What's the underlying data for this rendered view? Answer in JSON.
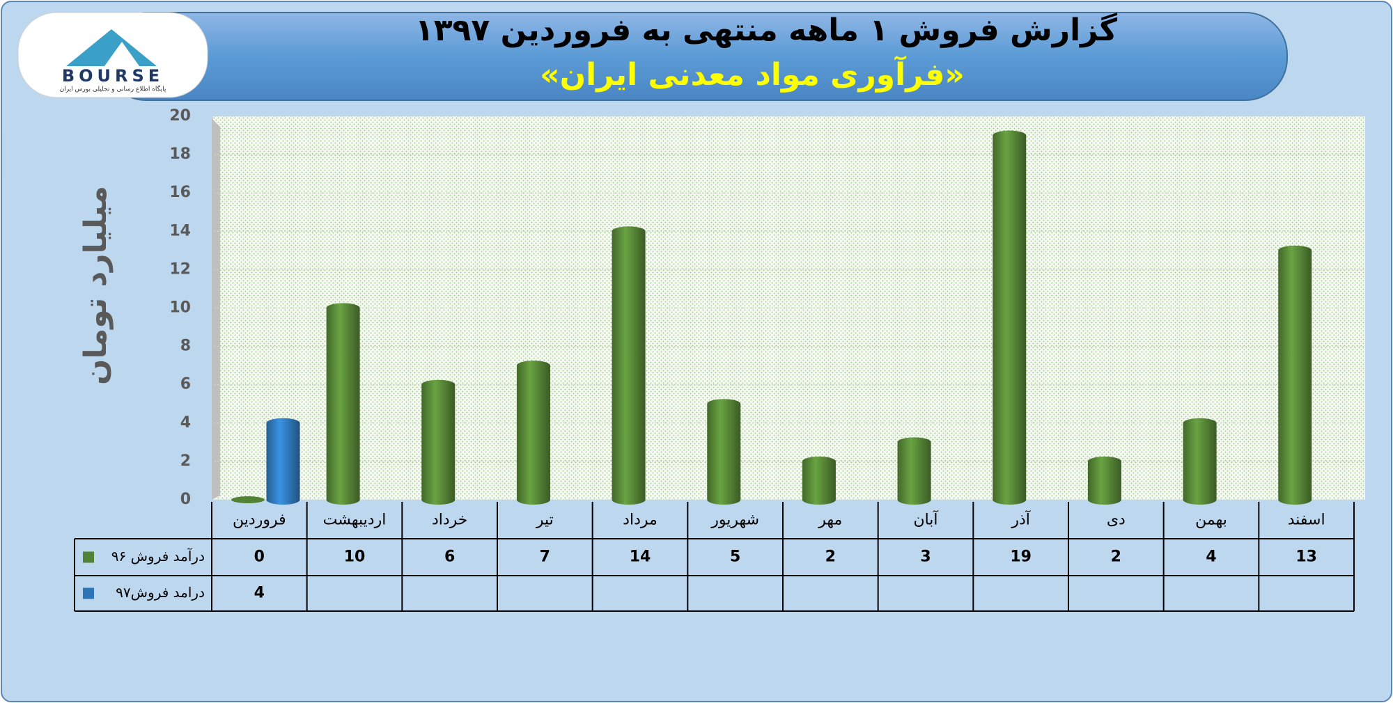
{
  "logo": {
    "text": "BOURSE",
    "caption": "پایگاه اطلاع رسانی و تحلیلی بورس ایران"
  },
  "chart_data": {
    "type": "bar",
    "title": "گزارش فروش ۱ ماهه منتهی به فروردین ۱۳۹۷",
    "subtitle": "«فرآوری مواد معدنی ایران»",
    "y_label": "میلیارد تومان",
    "categories": [
      "فروردین",
      "اردیبهشت",
      "خرداد",
      "تیر",
      "مرداد",
      "شهریور",
      "مهر",
      "آبان",
      "آذر",
      "دی",
      "بهمن",
      "اسفند"
    ],
    "series": [
      {
        "name": "درآمد فروش ۹۶",
        "color": "#548235",
        "values": [
          0,
          10,
          6,
          7,
          14,
          5,
          2,
          3,
          19,
          2,
          4,
          13
        ]
      },
      {
        "name": "درامد فروش۹۷",
        "color": "#2e75b6",
        "values": [
          4,
          null,
          null,
          null,
          null,
          null,
          null,
          null,
          null,
          null,
          null,
          null
        ]
      }
    ],
    "ylim": [
      0,
      20
    ],
    "yticks": [
      0,
      2,
      4,
      6,
      8,
      10,
      12,
      14,
      16,
      18,
      20
    ],
    "grid": true
  }
}
